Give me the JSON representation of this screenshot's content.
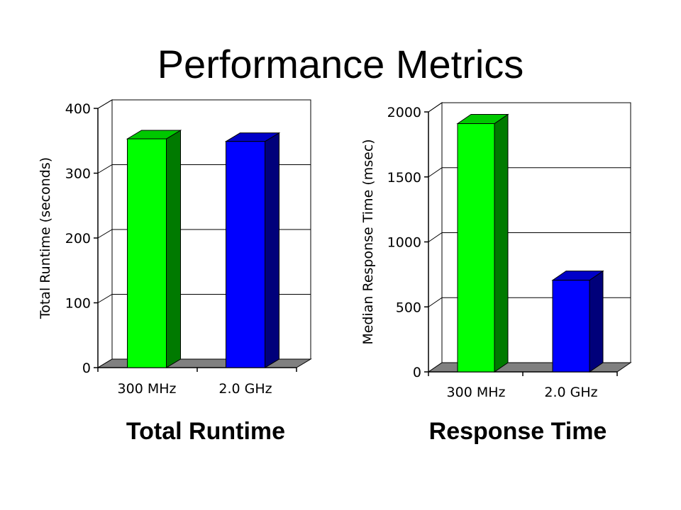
{
  "title": "Performance Metrics",
  "colors": {
    "green": "#00ff00",
    "green_side": "#007a00",
    "green_top": "#00c800",
    "blue": "#0000ff",
    "blue_side": "#00007a",
    "blue_top": "#0000c8",
    "floor": "#808080"
  },
  "chart_data": [
    {
      "type": "bar",
      "title": "",
      "caption": "Total Runtime",
      "categories": [
        "300 MHz",
        "2.0 GHz"
      ],
      "values": [
        353,
        349
      ],
      "ylabel": "Total Runtime (seconds)",
      "xlabel": "",
      "ylim": [
        0,
        400
      ],
      "yticks": [
        0,
        100,
        200,
        300,
        400
      ],
      "grid": true,
      "style": "3d"
    },
    {
      "type": "bar",
      "title": "",
      "caption": "Response Time",
      "categories": [
        "300 MHz",
        "2.0 GHz"
      ],
      "values": [
        1910,
        705
      ],
      "ylabel": "Median Response Time (msec)",
      "xlabel": "",
      "ylim": [
        0,
        2000
      ],
      "yticks": [
        0,
        500,
        1000,
        1500,
        2000
      ],
      "grid": true,
      "style": "3d"
    }
  ]
}
